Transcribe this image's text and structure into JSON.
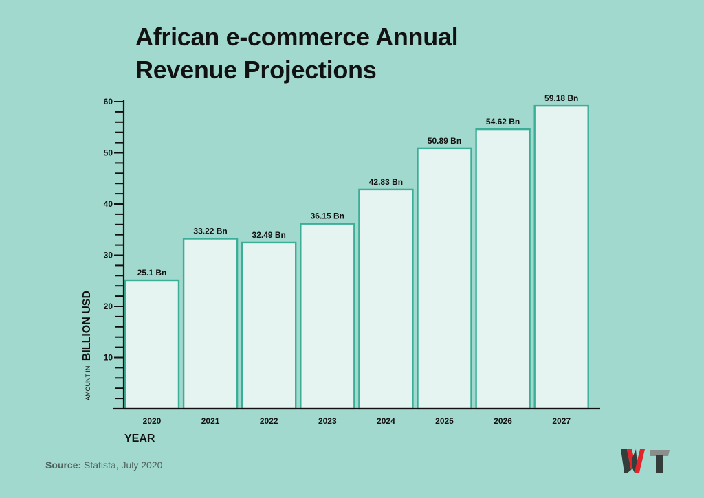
{
  "chart_data": {
    "type": "bar",
    "title": "African e-commerce Annual Revenue Projections",
    "title_lines": [
      "African e-commerce Annual",
      "Revenue Projections"
    ],
    "xlabel": "YEAR",
    "ylabel_prefix": "AMOUNT IN",
    "ylabel_main": "BILLION USD",
    "categories": [
      "2020",
      "2021",
      "2022",
      "2023",
      "2024",
      "2025",
      "2026",
      "2027"
    ],
    "values": [
      25.1,
      33.22,
      32.49,
      36.15,
      42.83,
      50.89,
      54.62,
      59.18
    ],
    "data_labels": [
      "25.1 Bn",
      "33.22 Bn",
      "32.49 Bn",
      "36.15 Bn",
      "42.83 Bn",
      "50.89 Bn",
      "54.62 Bn",
      "59.18 Bn"
    ],
    "yticks": [
      10,
      20,
      30,
      40,
      50,
      60
    ],
    "ytick_labels": [
      "10",
      "20",
      "30",
      "40",
      "50",
      "60"
    ],
    "minor_tick_step": 2,
    "ylim": [
      0,
      60
    ],
    "grid": false,
    "legend": "none"
  },
  "source": {
    "label": "Source:",
    "text": " Statista, July 2020"
  },
  "logo": {
    "text": "WT"
  },
  "colors": {
    "background": "#a2d9ce",
    "bar_fill": "#e5f3f1",
    "bar_border": "#3aae96",
    "axis": "#111111",
    "logo_w": "#e3242b",
    "logo_t": "#333d3a"
  }
}
